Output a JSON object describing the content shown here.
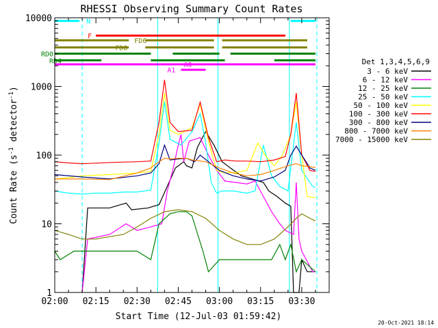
{
  "chart_data": {
    "type": "line",
    "title": "RHESSI Observing Summary Count Rates",
    "xlabel": "Start Time (12-Jul-03 01:59:42)",
    "ylabel_main": "Count Rate (s",
    "ylabel_sup1": "-1",
    "ylabel_mid": " detector",
    "ylabel_sup2": "-1",
    "ylabel_end": ")",
    "yscale": "log",
    "ylim": [
      1,
      10000
    ],
    "xlim_min": [
      0,
      100
    ],
    "x_tick_labels": [
      "02:00",
      "02:15",
      "02:30",
      "02:45",
      "03:00",
      "03:15",
      "03:30"
    ],
    "x_tick_min": [
      0,
      15,
      30,
      45,
      60,
      75,
      90
    ],
    "y_tick_labels": [
      "1",
      "10",
      "100",
      "1000",
      "10000"
    ],
    "y_tick_values": [
      1,
      10,
      100,
      1000,
      10000
    ],
    "legend_title": "Det 1,3,4,5,6,9",
    "legend_position": "right",
    "footer_date": "20-Oct-2021 18:14",
    "series": [
      {
        "name": "3 - 6 keV",
        "color": "#000000",
        "points": [
          [
            10,
            1
          ],
          [
            12,
            17
          ],
          [
            20,
            17
          ],
          [
            26,
            20
          ],
          [
            28,
            16
          ],
          [
            34,
            17
          ],
          [
            38,
            19
          ],
          [
            41,
            35
          ],
          [
            44,
            65
          ],
          [
            47,
            80
          ],
          [
            48,
            70
          ],
          [
            50,
            65
          ],
          [
            52,
            130
          ],
          [
            55,
            220
          ],
          [
            58,
            140
          ],
          [
            61,
            80
          ],
          [
            64,
            65
          ],
          [
            68,
            50
          ],
          [
            72,
            45
          ],
          [
            76,
            40
          ],
          [
            78,
            30
          ],
          [
            81,
            25
          ],
          [
            84,
            20
          ],
          [
            86,
            18
          ],
          [
            87,
            1
          ],
          [
            89,
            1
          ],
          [
            90,
            3
          ],
          [
            92,
            2
          ],
          [
            95,
            2
          ]
        ]
      },
      {
        "name": "6 - 12 keV",
        "color": "#ff00ff",
        "points": [
          [
            10,
            1
          ],
          [
            12,
            6
          ],
          [
            20,
            7
          ],
          [
            26,
            10
          ],
          [
            30,
            8
          ],
          [
            35,
            9
          ],
          [
            39,
            10
          ],
          [
            41,
            30
          ],
          [
            43,
            60
          ],
          [
            45,
            140
          ],
          [
            46,
            200
          ],
          [
            47,
            80
          ],
          [
            49,
            160
          ],
          [
            53,
            180
          ],
          [
            56,
            100
          ],
          [
            59,
            60
          ],
          [
            62,
            42
          ],
          [
            66,
            40
          ],
          [
            70,
            38
          ],
          [
            73,
            42
          ],
          [
            76,
            25
          ],
          [
            79,
            15
          ],
          [
            82,
            10
          ],
          [
            84,
            8
          ],
          [
            87,
            7
          ],
          [
            88,
            40
          ],
          [
            89,
            6
          ],
          [
            90,
            4
          ],
          [
            94,
            2
          ],
          [
            95,
            2
          ]
        ]
      },
      {
        "name": "12 - 25 keV",
        "color": "#008000",
        "points": [
          [
            0,
            4
          ],
          [
            2,
            3
          ],
          [
            7,
            4
          ],
          [
            10,
            4
          ],
          [
            20,
            4
          ],
          [
            30,
            4
          ],
          [
            35,
            3
          ],
          [
            38,
            10
          ],
          [
            42,
            14
          ],
          [
            45,
            15
          ],
          [
            48,
            15
          ],
          [
            50,
            13
          ],
          [
            54,
            4
          ],
          [
            56,
            2
          ],
          [
            60,
            3
          ],
          [
            70,
            3
          ],
          [
            79,
            3
          ],
          [
            82,
            5
          ],
          [
            84,
            3
          ],
          [
            86,
            5
          ],
          [
            88,
            2
          ],
          [
            90,
            3
          ],
          [
            95,
            2
          ]
        ]
      },
      {
        "name": "25 - 50 keV",
        "color": "#00ffff",
        "points": [
          [
            0,
            30
          ],
          [
            5,
            28
          ],
          [
            10,
            27
          ],
          [
            15,
            28
          ],
          [
            20,
            28
          ],
          [
            25,
            29
          ],
          [
            30,
            29
          ],
          [
            35,
            31
          ],
          [
            38,
            150
          ],
          [
            40,
            600
          ],
          [
            42,
            170
          ],
          [
            46,
            140
          ],
          [
            50,
            220
          ],
          [
            53,
            400
          ],
          [
            55,
            150
          ],
          [
            57,
            40
          ],
          [
            59,
            28
          ],
          [
            61,
            30
          ],
          [
            65,
            30
          ],
          [
            70,
            28
          ],
          [
            73,
            30
          ],
          [
            76,
            140
          ],
          [
            79,
            50
          ],
          [
            82,
            35
          ],
          [
            85,
            30
          ],
          [
            88,
            300
          ],
          [
            90,
            60
          ],
          [
            94,
            35
          ],
          [
            95,
            34
          ]
        ]
      },
      {
        "name": "50 - 100 keV",
        "color": "#ffff00",
        "points": [
          [
            0,
            45
          ],
          [
            5,
            47
          ],
          [
            10,
            50
          ],
          [
            20,
            52
          ],
          [
            30,
            55
          ],
          [
            35,
            58
          ],
          [
            38,
            200
          ],
          [
            40,
            800
          ],
          [
            42,
            230
          ],
          [
            45,
            200
          ],
          [
            50,
            250
          ],
          [
            53,
            550
          ],
          [
            56,
            160
          ],
          [
            59,
            60
          ],
          [
            62,
            55
          ],
          [
            66,
            56
          ],
          [
            70,
            60
          ],
          [
            74,
            150
          ],
          [
            77,
            95
          ],
          [
            80,
            70
          ],
          [
            83,
            100
          ],
          [
            86,
            200
          ],
          [
            88,
            600
          ],
          [
            90,
            100
          ],
          [
            92,
            25
          ],
          [
            95,
            24
          ]
        ]
      },
      {
        "name": "100 - 300 keV",
        "color": "#ff0000",
        "points": [
          [
            0,
            80
          ],
          [
            5,
            77
          ],
          [
            10,
            75
          ],
          [
            20,
            78
          ],
          [
            30,
            80
          ],
          [
            35,
            82
          ],
          [
            38,
            300
          ],
          [
            40,
            1250
          ],
          [
            42,
            300
          ],
          [
            45,
            220
          ],
          [
            50,
            230
          ],
          [
            53,
            590
          ],
          [
            56,
            180
          ],
          [
            59,
            80
          ],
          [
            62,
            85
          ],
          [
            66,
            82
          ],
          [
            70,
            82
          ],
          [
            75,
            80
          ],
          [
            80,
            85
          ],
          [
            84,
            95
          ],
          [
            86,
            200
          ],
          [
            88,
            800
          ],
          [
            90,
            100
          ],
          [
            93,
            60
          ],
          [
            95,
            58
          ]
        ]
      },
      {
        "name": "300 - 800 keV",
        "color": "#000080",
        "points": [
          [
            0,
            52
          ],
          [
            10,
            48
          ],
          [
            20,
            45
          ],
          [
            30,
            50
          ],
          [
            35,
            55
          ],
          [
            38,
            75
          ],
          [
            40,
            140
          ],
          [
            42,
            85
          ],
          [
            45,
            88
          ],
          [
            48,
            90
          ],
          [
            51,
            80
          ],
          [
            53,
            100
          ],
          [
            56,
            80
          ],
          [
            60,
            60
          ],
          [
            65,
            50
          ],
          [
            70,
            45
          ],
          [
            75,
            42
          ],
          [
            80,
            48
          ],
          [
            84,
            60
          ],
          [
            86,
            100
          ],
          [
            88,
            135
          ],
          [
            90,
            100
          ],
          [
            93,
            65
          ],
          [
            95,
            60
          ]
        ]
      },
      {
        "name": "800 - 7000 keV",
        "color": "#ff8000",
        "points": [
          [
            0,
            45
          ],
          [
            10,
            45
          ],
          [
            20,
            44
          ],
          [
            30,
            55
          ],
          [
            35,
            65
          ],
          [
            38,
            80
          ],
          [
            40,
            90
          ],
          [
            42,
            88
          ],
          [
            45,
            90
          ],
          [
            48,
            90
          ],
          [
            50,
            85
          ],
          [
            55,
            80
          ],
          [
            60,
            65
          ],
          [
            65,
            55
          ],
          [
            70,
            50
          ],
          [
            75,
            52
          ],
          [
            80,
            60
          ],
          [
            85,
            70
          ],
          [
            88,
            75
          ],
          [
            90,
            70
          ],
          [
            93,
            68
          ],
          [
            95,
            66
          ]
        ]
      },
      {
        "name": "7000 - 15000 keV",
        "color": "#808000",
        "points": [
          [
            0,
            8
          ],
          [
            5,
            7
          ],
          [
            10,
            6
          ],
          [
            15,
            6
          ],
          [
            20,
            6.5
          ],
          [
            25,
            7
          ],
          [
            30,
            9
          ],
          [
            35,
            12
          ],
          [
            40,
            15
          ],
          [
            45,
            16
          ],
          [
            50,
            15
          ],
          [
            55,
            12
          ],
          [
            60,
            8
          ],
          [
            65,
            6
          ],
          [
            70,
            5
          ],
          [
            75,
            5
          ],
          [
            80,
            6
          ],
          [
            85,
            9
          ],
          [
            88,
            12
          ],
          [
            90,
            14
          ],
          [
            93,
            12
          ],
          [
            95,
            11
          ]
        ]
      }
    ],
    "bars": [
      {
        "label": "N",
        "color": "#00ffff",
        "label_min": 11.5,
        "y_level": 9000,
        "segments": [
          [
            0,
            9
          ],
          [
            86,
            95
          ]
        ]
      },
      {
        "label": "F",
        "color": "#ff0000",
        "label_min": 12,
        "y_level": 5500,
        "segments": [
          [
            15,
            84
          ]
        ]
      },
      {
        "label": "FD6",
        "color": "#808000",
        "label_min": 29,
        "y_level": 4700,
        "segments": [
          [
            0,
            27
          ],
          [
            33,
            58
          ],
          [
            61,
            84
          ],
          [
            84,
            92
          ]
        ]
      },
      {
        "label": "FD8",
        "color": "#808000",
        "label_min": 22,
        "y_level": 3700,
        "segments": [
          [
            0,
            27
          ],
          [
            33,
            58
          ],
          [
            61,
            84
          ],
          [
            84,
            92
          ]
        ]
      },
      {
        "label": "RD0",
        "color": "#008000",
        "label_min": -5,
        "y_level": 3000,
        "segments": [
          [
            0,
            35
          ],
          [
            43,
            60
          ],
          [
            64,
            95
          ]
        ]
      },
      {
        "label": "RD4",
        "color": "#008000",
        "label_min": -2,
        "y_level": 2400,
        "segments": [
          [
            0,
            17
          ],
          [
            35,
            62
          ],
          [
            80,
            95
          ]
        ]
      },
      {
        "label": "A0",
        "color": "#ff00ff",
        "label_min": 47,
        "y_level": 2100,
        "segments": [
          [
            0,
            95
          ]
        ]
      },
      {
        "label": "A1",
        "color": "#ff00ff",
        "label_min": 41,
        "y_level": 1750,
        "segments": [
          [
            46,
            55
          ]
        ]
      }
    ],
    "vlines_dashed_min": [
      10,
      95.5
    ],
    "vlines_solid_min": [
      37.5,
      59.5,
      85.5
    ],
    "vline_color": "#00ffff"
  }
}
